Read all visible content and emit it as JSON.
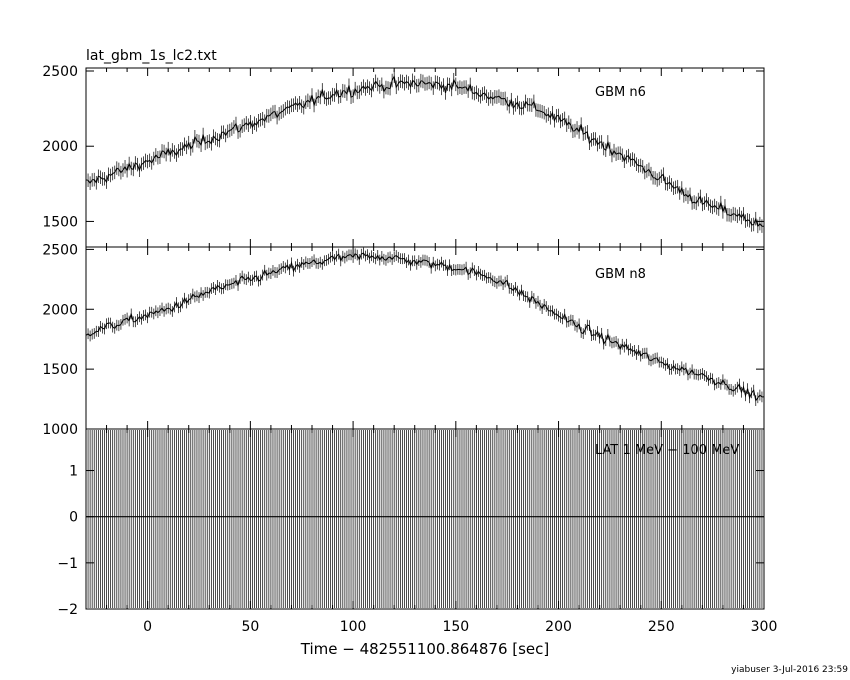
{
  "title": "lat_gbm_1s_lc2.txt",
  "xlabel": "Time − 482551100.864876 [sec]",
  "footer": "yiabuser  3-Jul-2016 23:59",
  "chart_data": [
    {
      "type": "line",
      "name": "GBM n6",
      "xlim": [
        -30,
        300
      ],
      "ylim": [
        1330,
        2520
      ],
      "yticks": [
        {
          "value": 1500,
          "label": "1500"
        },
        {
          "value": 2000,
          "label": "2000"
        },
        {
          "value": 2500,
          "label": "2500"
        }
      ],
      "x": [
        -30,
        -10,
        10,
        30,
        50,
        70,
        90,
        110,
        130,
        150,
        170,
        190,
        210,
        230,
        250,
        270,
        290,
        300
      ],
      "y": [
        1750,
        1850,
        1950,
        2050,
        2150,
        2250,
        2350,
        2400,
        2420,
        2400,
        2320,
        2250,
        2100,
        1950,
        1780,
        1620,
        1530,
        1450
      ]
    },
    {
      "type": "line",
      "name": "GBM n8",
      "xlim": [
        -30,
        300
      ],
      "ylim": [
        1000,
        2520
      ],
      "yticks": [
        {
          "value": 1000,
          "label": "1000"
        },
        {
          "value": 1500,
          "label": "1500"
        },
        {
          "value": 2000,
          "label": "2000"
        },
        {
          "value": 2500,
          "label": "2500"
        }
      ],
      "x": [
        -30,
        -10,
        10,
        30,
        50,
        70,
        90,
        110,
        130,
        150,
        170,
        190,
        210,
        230,
        250,
        270,
        290,
        300
      ],
      "y": [
        1800,
        1900,
        2000,
        2150,
        2250,
        2350,
        2420,
        2450,
        2400,
        2350,
        2250,
        2050,
        1850,
        1700,
        1550,
        1450,
        1320,
        1250
      ]
    },
    {
      "type": "line",
      "name": "LAT 1 MeV − 100 MeV",
      "xlim": [
        -30,
        300
      ],
      "ylim": [
        -2,
        1.9
      ],
      "yticks": [
        {
          "value": -2,
          "label": "−2"
        },
        {
          "value": -1,
          "label": "−1"
        },
        {
          "value": 0,
          "label": "0"
        },
        {
          "value": 1,
          "label": "1"
        }
      ],
      "x": [
        -30,
        300
      ],
      "y": [
        0,
        0
      ]
    }
  ],
  "xticks": [
    {
      "value": 0,
      "label": "0"
    },
    {
      "value": 50,
      "label": "50"
    },
    {
      "value": 100,
      "label": "100"
    },
    {
      "value": 150,
      "label": "150"
    },
    {
      "value": 200,
      "label": "200"
    },
    {
      "value": 250,
      "label": "250"
    },
    {
      "value": 300,
      "label": "300"
    }
  ]
}
